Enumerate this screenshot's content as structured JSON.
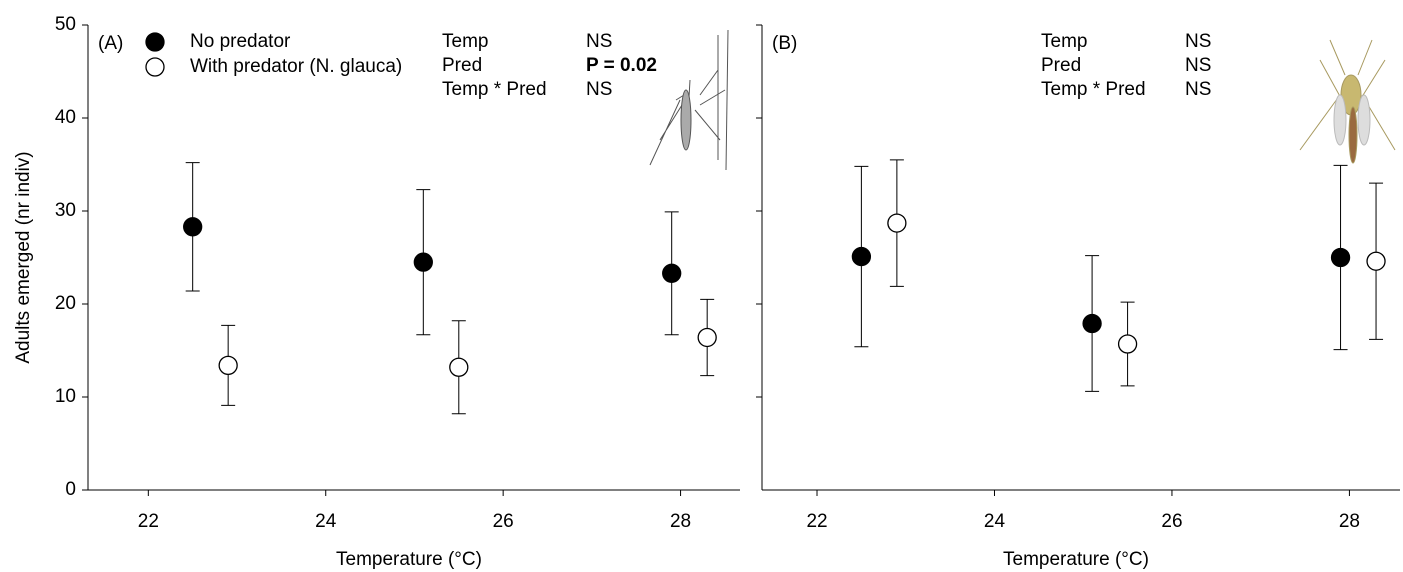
{
  "chart_data": [
    {
      "type": "scatter",
      "panel_label": "(A)",
      "xlabel": "Temperature (°C)",
      "ylabel": "Adults emerged (nr indiv)",
      "xlim": [
        21.32,
        28.67
      ],
      "ylim": [
        0,
        50
      ],
      "xticks": [
        22,
        24,
        26,
        28
      ],
      "yticks": [
        0,
        10,
        20,
        30,
        40,
        50
      ],
      "show_ytick_labels": true,
      "legend": true,
      "series": [
        {
          "name": "No predator",
          "color": "#000000",
          "x": [
            22.5,
            25.1,
            27.9
          ],
          "values": [
            28.3,
            24.5,
            23.3
          ],
          "errors": [
            6.9,
            7.8,
            6.6
          ]
        },
        {
          "name": "With predator (N. glauca)",
          "color": "#ffffff",
          "x": [
            22.9,
            25.5,
            28.3
          ],
          "values": [
            13.4,
            13.2,
            16.4
          ],
          "errors": [
            4.3,
            5.0,
            4.1
          ]
        }
      ],
      "stats": [
        {
          "term": "Temp",
          "result": "NS",
          "bold": false
        },
        {
          "term": "Pred",
          "result": "P = 0.02",
          "bold": true
        },
        {
          "term": "Temp * Pred",
          "result": "NS",
          "bold": false
        }
      ]
    },
    {
      "type": "scatter",
      "panel_label": "(B)",
      "xlabel": "Temperature (°C)",
      "xlim": [
        21.38,
        28.57
      ],
      "ylim": [
        0,
        50
      ],
      "xticks": [
        22,
        24,
        26,
        28
      ],
      "yticks": [
        10,
        20,
        30,
        40,
        50
      ],
      "show_ytick_labels": false,
      "legend": false,
      "series": [
        {
          "color": "#000000",
          "x": [
            22.5,
            25.1,
            27.9
          ],
          "values": [
            25.1,
            17.9,
            25.0
          ],
          "errors": [
            9.7,
            7.3,
            9.9
          ]
        },
        {
          "color": "#ffffff",
          "x": [
            22.9,
            25.5,
            28.3
          ],
          "values": [
            28.7,
            15.7,
            24.6
          ],
          "errors": [
            6.8,
            4.5,
            8.4
          ]
        }
      ],
      "stats": [
        {
          "term": "Temp",
          "result": "NS",
          "bold": false
        },
        {
          "term": "Pred",
          "result": "NS",
          "bold": false
        },
        {
          "term": "Temp * Pred",
          "result": "NS",
          "bold": false
        }
      ]
    }
  ]
}
